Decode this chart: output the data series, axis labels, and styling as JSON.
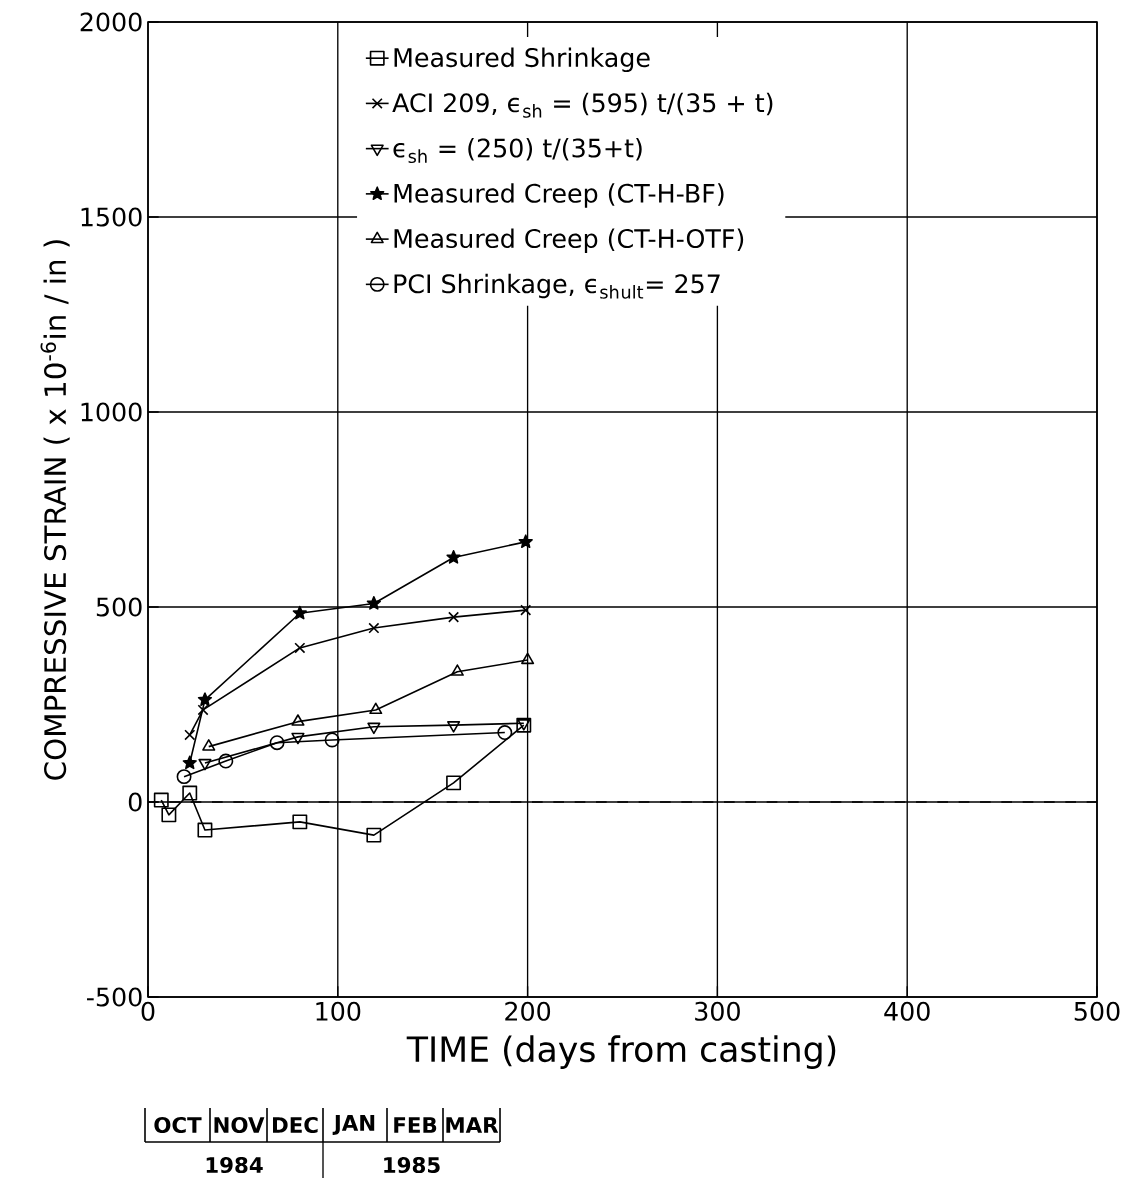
{
  "chart_data": {
    "type": "line",
    "xlabel": "TIME (days from casting)",
    "ylabel": "COMPRESSIVE STRAIN ( x 10$^{-6}$in / in )",
    "xlim": [
      0,
      500
    ],
    "ylim": [
      -500,
      2000
    ],
    "xticks": [
      0,
      100,
      200,
      300,
      400,
      500
    ],
    "yticks": [
      -500,
      0,
      500,
      1000,
      1500,
      2000
    ],
    "grid": true,
    "legend": "top",
    "ref_lines": [
      {
        "axis": "y",
        "value": 0,
        "line_style": "dashed",
        "color": "#000000"
      }
    ],
    "annotations": [
      "OCT",
      "NOV",
      "DEC",
      "JAN",
      "FEB",
      "MAR",
      "1984",
      "1985"
    ],
    "series": [
      {
        "name": "Measured  Shrinkage",
        "color": "#000000",
        "marker": "square",
        "x": [
          7,
          11,
          22,
          30,
          80,
          119,
          161,
          198
        ],
        "values": [
          5,
          -33,
          23,
          -72,
          -51,
          -85,
          49,
          197
        ]
      },
      {
        "name": "ACI  209, ϵ$_{sh}$ = (595) t/(35 + t)",
        "color": "#000000",
        "marker": "cross",
        "x": [
          22,
          29,
          80,
          119,
          161,
          199
        ],
        "values": [
          172,
          236,
          395,
          446,
          474,
          492
        ]
      },
      {
        "name": "ϵ$_{sh}$ = (250) t/(35+t)",
        "color": "#000000",
        "marker": "triangle-down",
        "x": [
          30,
          79,
          119,
          161,
          198
        ],
        "values": [
          100,
          167,
          193,
          197,
          202
        ]
      },
      {
        "name": "Measured  Creep (CT-H-BF)",
        "color": "#000000",
        "marker": "star",
        "x": [
          22,
          30,
          80,
          119,
          161,
          199
        ],
        "values": [
          100,
          262,
          484,
          509,
          627,
          667
        ]
      },
      {
        "name": "Measured  Creep (CT-H-OTF)",
        "color": "#000000",
        "marker": "triangle",
        "x": [
          32,
          79,
          120,
          163,
          200
        ],
        "values": [
          142,
          206,
          236,
          334,
          364
        ]
      },
      {
        "name": "PCI  Shrinkage, ϵ$_{sh}$$_{ult}$= 257",
        "color": "#000000",
        "marker": "circle",
        "x": [
          19,
          41,
          68,
          97,
          188
        ],
        "values": [
          65,
          105,
          152,
          159,
          178
        ]
      }
    ]
  }
}
